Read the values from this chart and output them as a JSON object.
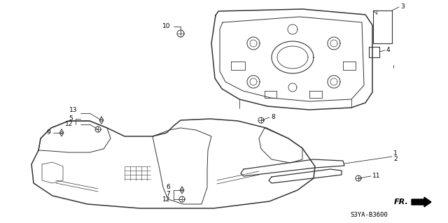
{
  "bg_color": "#ffffff",
  "line_color": "#333333",
  "label_color": "#000000",
  "diagram_code": "S3YA-B3600",
  "fr_label": "FR."
}
